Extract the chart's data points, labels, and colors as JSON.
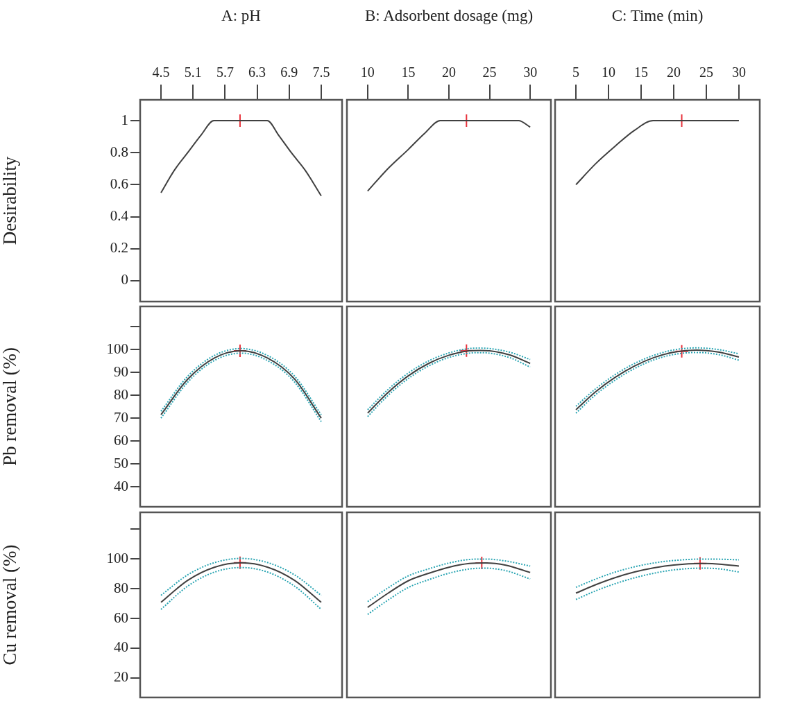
{
  "chart_data": [
    {
      "type": "line",
      "xlabel": "A: pH",
      "ylabel": "Desirability",
      "xlim": [
        4.11,
        7.89
      ],
      "xticks": [
        4.5,
        5.1,
        5.7,
        6.3,
        6.9,
        7.5
      ],
      "ylim": [
        -0.13,
        1.13
      ],
      "yticks": [
        0,
        0.2,
        0.4,
        0.6,
        0.8,
        1
      ],
      "series": [
        {
          "color": "#404040",
          "x": [
            4.5,
            4.75,
            5.0,
            5.25,
            5.49,
            6.49,
            6.7,
            6.94,
            7.2,
            7.5
          ],
          "values": [
            0.55,
            0.69,
            0.8,
            0.91,
            1,
            1,
            0.91,
            0.8,
            0.69,
            0.53
          ]
        },
        {
          "type": "scatter",
          "marker": "cross",
          "color": "#e8323c",
          "x": [
            5.98
          ],
          "values": [
            1
          ]
        }
      ]
    },
    {
      "type": "line",
      "xlabel": "B: Adsorbent dosage (mg)",
      "xlim": [
        7.45,
        32.55
      ],
      "xticks": [
        10,
        15,
        20,
        25,
        30
      ],
      "ylim": [
        -0.13,
        1.13
      ],
      "yticks": [
        0,
        0.2,
        0.4,
        0.6,
        0.8,
        1
      ],
      "tick_labels": "x",
      "series": [
        {
          "color": "#404040",
          "x": [
            10,
            12.5,
            15,
            17,
            18.93,
            28.57,
            30
          ],
          "values": [
            0.56,
            0.7,
            0.82,
            0.92,
            1,
            1,
            0.96
          ]
        },
        {
          "type": "scatter",
          "marker": "cross",
          "color": "#e8323c",
          "x": [
            22.16
          ],
          "values": [
            1
          ]
        }
      ]
    },
    {
      "type": "line",
      "xlabel": "C: Time (min)",
      "xlim": [
        1.8,
        33.2
      ],
      "xticks": [
        5,
        10,
        15,
        20,
        25,
        30
      ],
      "ylim": [
        -0.13,
        1.13
      ],
      "yticks": [
        0,
        0.2,
        0.4,
        0.6,
        0.8,
        1
      ],
      "tick_labels": "x",
      "series": [
        {
          "color": "#404040",
          "x": [
            5,
            8,
            11,
            14,
            16.84,
            30
          ],
          "values": [
            0.6,
            0.73,
            0.84,
            0.94,
            1,
            1
          ]
        },
        {
          "type": "scatter",
          "marker": "cross",
          "color": "#e8323c",
          "x": [
            21.23
          ],
          "values": [
            1
          ]
        }
      ]
    },
    {
      "type": "line",
      "ylabel": "Pb removal (%)",
      "xlim": [
        4.11,
        7.89
      ],
      "ylim": [
        31.3,
        118.8
      ],
      "yticks": [
        {
          "value": 110,
          "label": null
        },
        100,
        90,
        80,
        70,
        60,
        50,
        40
      ],
      "tick_labels": "y",
      "series": [
        {
          "color": "#404040",
          "x": [
            4.5,
            5,
            5.5,
            6,
            6.5,
            7,
            7.5
          ],
          "values": [
            71.5,
            87,
            96.3,
            99.4,
            96.2,
            87.1,
            70
          ]
        },
        {
          "color": "#2aa5b3",
          "line_style": "dotted",
          "x": [
            4.5,
            5,
            5.5,
            6,
            6.5,
            7,
            7.5
          ],
          "values": [
            73,
            88.3,
            97.4,
            100.4,
            97.3,
            88.4,
            71.5
          ]
        },
        {
          "color": "#2aa5b3",
          "line_style": "dotted",
          "x": [
            4.5,
            5,
            5.5,
            6,
            6.5,
            7,
            7.5
          ],
          "values": [
            70,
            85.7,
            95.2,
            98.4,
            95.1,
            85.8,
            68.5
          ]
        },
        {
          "type": "scatter",
          "marker": "cross",
          "color": "#e8323c",
          "x": [
            5.98
          ],
          "values": [
            99.4
          ]
        }
      ]
    },
    {
      "type": "line",
      "xlim": [
        7.45,
        32.55
      ],
      "ylim": [
        31.3,
        118.8
      ],
      "tick_labels": false,
      "series": [
        {
          "color": "#404040",
          "x": [
            10,
            12.5,
            15,
            17.5,
            20,
            22.5,
            23.8,
            25,
            27.5,
            30
          ],
          "values": [
            72.2,
            81.2,
            88.5,
            93.9,
            97.5,
            99.4,
            99.6,
            99.4,
            97.6,
            93.9
          ]
        },
        {
          "color": "#2aa5b3",
          "line_style": "dotted",
          "x": [
            10,
            12.5,
            15,
            17.5,
            20,
            22.5,
            23.8,
            25,
            27.5,
            30
          ],
          "values": [
            73.7,
            82.5,
            89.7,
            95,
            98.5,
            100.4,
            100.6,
            100.4,
            98.8,
            95.6
          ]
        },
        {
          "color": "#2aa5b3",
          "line_style": "dotted",
          "x": [
            10,
            12.5,
            15,
            17.5,
            20,
            22.5,
            23.8,
            25,
            27.5,
            30
          ],
          "values": [
            70.7,
            79.9,
            87.3,
            92.8,
            96.5,
            98.4,
            98.6,
            98.4,
            96.4,
            92.3
          ]
        },
        {
          "type": "scatter",
          "marker": "cross",
          "color": "#e8323c",
          "x": [
            22.16
          ],
          "values": [
            99.5
          ]
        }
      ]
    },
    {
      "type": "line",
      "xlim": [
        1.8,
        33.2
      ],
      "ylim": [
        31.3,
        118.8
      ],
      "tick_labels": false,
      "series": [
        {
          "color": "#404040",
          "x": [
            5,
            8,
            11,
            14,
            17,
            20,
            23.5,
            27,
            30
          ],
          "values": [
            73.7,
            81.5,
            87.8,
            92.8,
            96.5,
            98.8,
            99.7,
            98.8,
            96.7
          ]
        },
        {
          "color": "#2aa5b3",
          "line_style": "dotted",
          "x": [
            5,
            8,
            11,
            14,
            17,
            20,
            23.5,
            27,
            30
          ],
          "values": [
            75.2,
            82.8,
            89,
            93.9,
            97.5,
            99.8,
            100.7,
            99.9,
            98.1
          ]
        },
        {
          "color": "#2aa5b3",
          "line_style": "dotted",
          "x": [
            5,
            8,
            11,
            14,
            17,
            20,
            23.5,
            27,
            30
          ],
          "values": [
            72.2,
            80.2,
            86.6,
            91.7,
            95.5,
            97.8,
            98.7,
            97.7,
            95.3
          ]
        },
        {
          "type": "scatter",
          "marker": "cross",
          "color": "#e8323c",
          "x": [
            21.23
          ],
          "values": [
            99.2
          ]
        }
      ]
    },
    {
      "type": "line",
      "ylabel": "Cu removal (%)",
      "xlim": [
        4.11,
        7.89
      ],
      "ylim": [
        6.9,
        131.3
      ],
      "yticks": [
        {
          "value": 120,
          "label": null
        },
        100,
        80,
        60,
        40,
        20
      ],
      "tick_labels": "y",
      "series": [
        {
          "color": "#404040",
          "x": [
            4.5,
            5,
            5.5,
            6,
            6.5,
            7,
            7.5
          ],
          "values": [
            70.8,
            85.6,
            94.4,
            97.4,
            94.4,
            85.6,
            70.8
          ]
        },
        {
          "color": "#2aa5b3",
          "line_style": "dotted",
          "x": [
            4.5,
            5,
            5.5,
            6,
            6.5,
            7,
            7.5
          ],
          "values": [
            75.5,
            89.3,
            97.5,
            100.3,
            97.5,
            89.3,
            75.5
          ]
        },
        {
          "color": "#2aa5b3",
          "line_style": "dotted",
          "x": [
            4.5,
            5,
            5.5,
            6,
            6.5,
            7,
            7.5
          ],
          "values": [
            66.1,
            81.7,
            91.1,
            94.2,
            91.1,
            81.7,
            66.1
          ]
        },
        {
          "type": "scatter",
          "marker": "cross",
          "color": "#e8323c",
          "x": [
            5.98
          ],
          "values": [
            97.4
          ]
        }
      ]
    },
    {
      "type": "line",
      "xlim": [
        7.45,
        32.55
      ],
      "ylim": [
        6.9,
        131.3
      ],
      "tick_labels": false,
      "series": [
        {
          "color": "#404040",
          "x": [
            10,
            12.5,
            15,
            17.5,
            20,
            22.5,
            24.5,
            27,
            30
          ],
          "values": [
            67.4,
            76.9,
            85.3,
            90.3,
            94.4,
            96.9,
            97.3,
            95.8,
            90.9
          ]
        },
        {
          "color": "#2aa5b3",
          "line_style": "dotted",
          "x": [
            10,
            12.5,
            15,
            17.5,
            20,
            22.5,
            24.5,
            27,
            30
          ],
          "values": [
            71.3,
            80.5,
            88.6,
            93.3,
            97.2,
            99.6,
            99.9,
            98.6,
            95.2
          ]
        },
        {
          "color": "#2aa5b3",
          "line_style": "dotted",
          "x": [
            10,
            12.5,
            15,
            17.5,
            20,
            22.5,
            24.5,
            27,
            30
          ],
          "values": [
            62.7,
            72.3,
            80.8,
            86.0,
            90.4,
            93.2,
            93.8,
            92.1,
            86.5
          ]
        },
        {
          "type": "scatter",
          "marker": "cross",
          "color": "#e8323c",
          "x": [
            24.04
          ],
          "values": [
            97.3
          ]
        }
      ]
    },
    {
      "type": "line",
      "xlim": [
        1.8,
        33.2
      ],
      "ylim": [
        6.9,
        131.3
      ],
      "tick_labels": false,
      "series": [
        {
          "color": "#404040",
          "x": [
            5,
            8,
            11,
            14,
            17,
            20,
            24.4,
            27,
            30
          ],
          "values": [
            77.0,
            82.6,
            87.4,
            91.2,
            94.0,
            95.9,
            96.9,
            96.5,
            95.2
          ]
        },
        {
          "color": "#2aa5b3",
          "line_style": "dotted",
          "x": [
            5,
            8,
            11,
            14,
            17,
            20,
            24.4,
            27,
            30
          ],
          "values": [
            80.9,
            86.4,
            91.1,
            94.7,
            97.3,
            98.9,
            99.9,
            99.8,
            99.4
          ]
        },
        {
          "color": "#2aa5b3",
          "line_style": "dotted",
          "x": [
            5,
            8,
            11,
            14,
            17,
            20,
            24.4,
            27,
            30
          ],
          "values": [
            72.7,
            78.5,
            83.3,
            87.3,
            90.4,
            92.6,
            93.8,
            93.3,
            91.2
          ]
        },
        {
          "type": "scatter",
          "marker": "cross",
          "color": "#e8323c",
          "x": [
            24.04
          ],
          "values": [
            96.9
          ]
        }
      ]
    }
  ]
}
